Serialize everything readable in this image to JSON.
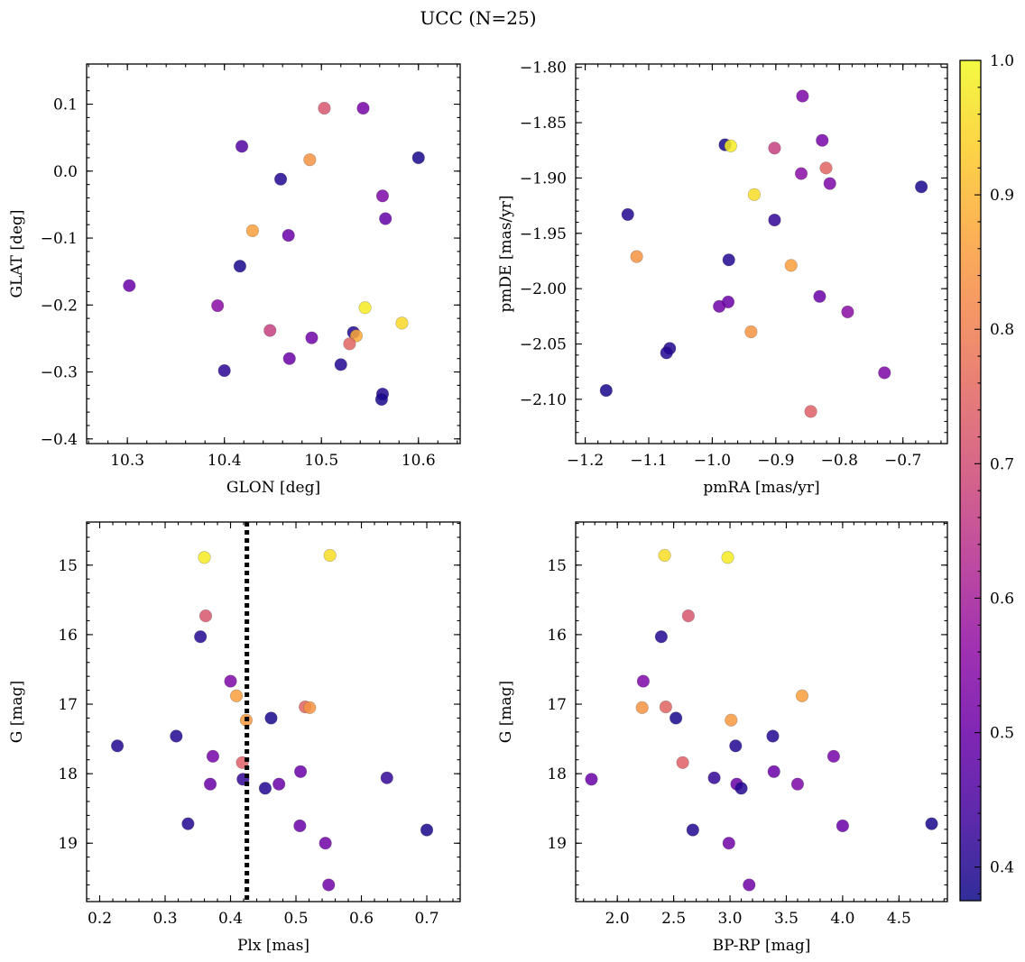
{
  "suptitle": "UCC (N=25)",
  "colorbar": {
    "min": 0.375,
    "max": 1.0,
    "ticks": [
      0.4,
      0.5,
      0.6,
      0.7,
      0.8,
      0.9,
      1.0
    ],
    "tick_labels": [
      "0.4",
      "0.5",
      "0.6",
      "0.7",
      "0.8",
      "0.9",
      "1.0"
    ],
    "colormap": "plasma"
  },
  "chart_data": [
    {
      "type": "scatter",
      "xlabel": "GLON [deg]",
      "ylabel": "GLAT [deg]",
      "xlim": [
        10.258,
        10.643
      ],
      "ylim": [
        -0.407,
        0.16
      ],
      "y_inverted": false,
      "xticks": [
        10.3,
        10.4,
        10.5,
        10.6
      ],
      "xtick_labels": [
        "10.3",
        "10.4",
        "10.5",
        "10.6"
      ],
      "yticks": [
        -0.4,
        -0.3,
        -0.2,
        -0.1,
        0.0,
        0.1
      ],
      "ytick_labels": [
        "−0.4",
        "−0.3",
        "−0.2",
        "−0.1",
        "0.0",
        "0.1"
      ],
      "x": [
        10.503,
        10.543,
        10.418,
        10.488,
        10.458,
        10.6,
        10.563,
        10.566,
        10.429,
        10.466,
        10.302,
        10.416,
        10.393,
        10.545,
        10.583,
        10.447,
        10.533,
        10.536,
        10.529,
        10.49,
        10.467,
        10.52,
        10.4,
        10.563,
        10.562
      ],
      "y": [
        0.094,
        0.094,
        0.037,
        0.017,
        -0.012,
        0.02,
        -0.037,
        -0.071,
        -0.089,
        -0.096,
        -0.171,
        -0.142,
        -0.201,
        -0.204,
        -0.227,
        -0.238,
        -0.241,
        -0.246,
        -0.258,
        -0.249,
        -0.28,
        -0.289,
        -0.298,
        -0.333,
        -0.341
      ],
      "c": [
        0.72,
        0.52,
        0.46,
        0.84,
        0.4,
        0.39,
        0.53,
        0.49,
        0.86,
        0.5,
        0.5,
        0.39,
        0.55,
        0.98,
        0.95,
        0.67,
        0.4,
        0.88,
        0.75,
        0.51,
        0.5,
        0.4,
        0.41,
        0.4,
        0.39
      ]
    },
    {
      "type": "scatter",
      "xlabel": "pmRA [mas/yr]",
      "ylabel": "pmDE [mas/yr]",
      "xlim": [
        -1.215,
        -0.63
      ],
      "ylim": [
        -2.14,
        -1.797
      ],
      "y_inverted": false,
      "xticks": [
        -1.2,
        -1.1,
        -1.0,
        -0.9,
        -0.8,
        -0.7
      ],
      "xtick_labels": [
        "−1.2",
        "−1.1",
        "−1.0",
        "−0.9",
        "−0.8",
        "−0.7"
      ],
      "yticks": [
        -2.1,
        -2.05,
        -2.0,
        -1.95,
        -1.9,
        -1.85,
        -1.8
      ],
      "ytick_labels": [
        "−2.10",
        "−2.05",
        "−2.00",
        "−1.95",
        "−1.90",
        "−1.85",
        "−1.80"
      ],
      "x": [
        -0.858,
        -0.827,
        -0.98,
        -0.971,
        -0.902,
        -0.86,
        -0.821,
        -0.815,
        -0.934,
        -1.133,
        -0.671,
        -0.902,
        -1.119,
        -0.974,
        -0.876,
        -0.831,
        -0.975,
        -0.989,
        -0.787,
        -0.939,
        -1.067,
        -1.072,
        -0.729,
        -1.167,
        -0.845
      ],
      "y": [
        -1.826,
        -1.866,
        -1.87,
        -1.871,
        -1.873,
        -1.896,
        -1.891,
        -1.905,
        -1.915,
        -1.933,
        -1.908,
        -1.938,
        -1.971,
        -1.974,
        -1.979,
        -2.007,
        -2.012,
        -2.016,
        -2.021,
        -2.039,
        -2.054,
        -2.058,
        -2.076,
        -2.092,
        -2.111
      ],
      "c": [
        0.53,
        0.52,
        0.39,
        0.98,
        0.67,
        0.55,
        0.75,
        0.53,
        0.96,
        0.4,
        0.39,
        0.42,
        0.84,
        0.4,
        0.86,
        0.5,
        0.5,
        0.51,
        0.55,
        0.84,
        0.4,
        0.4,
        0.53,
        0.39,
        0.74
      ]
    },
    {
      "type": "scatter",
      "xlabel": "Plx [mas]",
      "ylabel": "G [mag]",
      "xlim": [
        0.18,
        0.751
      ],
      "ylim": [
        19.84,
        14.38
      ],
      "y_inverted": true,
      "vline": 0.425,
      "xticks": [
        0.2,
        0.3,
        0.4,
        0.5,
        0.6,
        0.7
      ],
      "xtick_labels": [
        "0.2",
        "0.3",
        "0.4",
        "0.5",
        "0.6",
        "0.7"
      ],
      "yticks": [
        15,
        16,
        17,
        18,
        19
      ],
      "ytick_labels": [
        "15",
        "16",
        "17",
        "18",
        "19"
      ],
      "x": [
        0.36,
        0.552,
        0.362,
        0.354,
        0.4,
        0.409,
        0.424,
        0.462,
        0.514,
        0.521,
        0.227,
        0.317,
        0.373,
        0.369,
        0.418,
        0.419,
        0.474,
        0.453,
        0.507,
        0.639,
        0.335,
        0.506,
        0.7,
        0.545,
        0.55
      ],
      "y": [
        14.89,
        14.86,
        15.73,
        16.03,
        16.67,
        16.88,
        17.23,
        17.2,
        17.04,
        17.05,
        17.6,
        17.46,
        17.75,
        18.15,
        17.84,
        18.08,
        18.15,
        18.21,
        17.97,
        18.06,
        18.72,
        18.75,
        18.81,
        19.0,
        19.6
      ],
      "c": [
        0.98,
        0.96,
        0.72,
        0.4,
        0.53,
        0.86,
        0.85,
        0.39,
        0.75,
        0.84,
        0.4,
        0.4,
        0.52,
        0.5,
        0.74,
        0.42,
        0.5,
        0.4,
        0.5,
        0.42,
        0.4,
        0.5,
        0.39,
        0.51,
        0.51
      ]
    },
    {
      "type": "scatter",
      "xlabel": "BP-RP [mag]",
      "ylabel": "G [mag]",
      "xlim": [
        1.63,
        4.93
      ],
      "ylim": [
        19.84,
        14.38
      ],
      "y_inverted": true,
      "xticks": [
        2.0,
        2.5,
        3.0,
        3.5,
        4.0,
        4.5
      ],
      "xtick_labels": [
        "2.0",
        "2.5",
        "3.0",
        "3.5",
        "4.0",
        "4.5"
      ],
      "yticks": [
        15,
        16,
        17,
        18,
        19
      ],
      "ytick_labels": [
        "15",
        "16",
        "17",
        "18",
        "19"
      ],
      "x": [
        2.42,
        2.98,
        2.63,
        2.39,
        2.23,
        2.22,
        2.43,
        2.52,
        3.01,
        3.64,
        3.05,
        3.38,
        2.58,
        3.92,
        1.77,
        2.86,
        3.39,
        3.06,
        3.1,
        3.6,
        2.67,
        4.0,
        4.79,
        2.99,
        3.17
      ],
      "y": [
        14.86,
        14.89,
        15.73,
        16.03,
        16.67,
        17.05,
        17.04,
        17.2,
        17.23,
        16.88,
        17.6,
        17.46,
        17.84,
        17.75,
        18.08,
        18.06,
        17.97,
        18.15,
        18.21,
        18.15,
        18.81,
        18.75,
        18.72,
        19.0,
        19.6
      ],
      "c": [
        0.96,
        0.98,
        0.72,
        0.4,
        0.53,
        0.84,
        0.75,
        0.39,
        0.85,
        0.86,
        0.4,
        0.4,
        0.74,
        0.52,
        0.5,
        0.42,
        0.5,
        0.5,
        0.4,
        0.53,
        0.4,
        0.5,
        0.39,
        0.51,
        0.51
      ]
    }
  ]
}
